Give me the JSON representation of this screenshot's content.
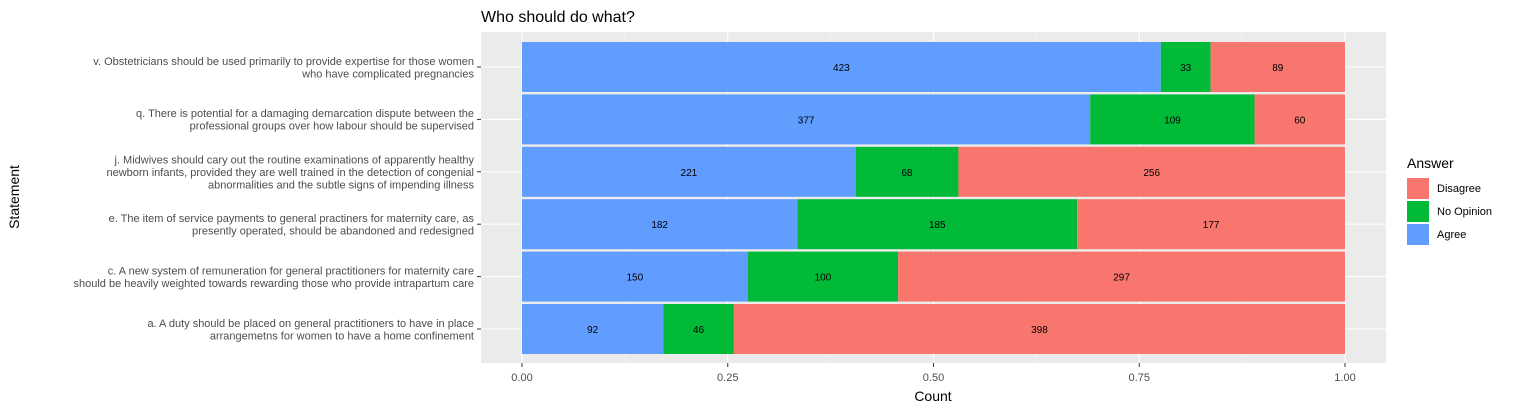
{
  "chart_data": {
    "type": "bar",
    "orientation": "horizontal",
    "stacked": "percent",
    "title": "Who should do what?",
    "xlabel": "Count",
    "ylabel": "Statement",
    "xlim": [
      0,
      1
    ],
    "xticks": [
      "0.00",
      "0.25",
      "0.50",
      "0.75",
      "1.00"
    ],
    "grid": true,
    "legend": {
      "title": "Answer",
      "position": "right",
      "entries": [
        {
          "name": "Disagree",
          "color": "#F8766D"
        },
        {
          "name": "No Opinion",
          "color": "#00BA38"
        },
        {
          "name": "Agree",
          "color": "#619CFF"
        }
      ]
    },
    "categories": [
      [
        "v. Obstetricians should be used primarily to provide expertise for those women",
        "who have complicated pregnancies"
      ],
      [
        "q. There is potential for a damaging demarcation dispute between the",
        "professional groups over how labour should be supervised"
      ],
      [
        "j. Midwives should cary out the routine examinations of apparently healthy",
        "newborn infants, provided they are well trained in the detection of congenial",
        "abnormalities and the subtle signs of impending illness"
      ],
      [
        "e. The item of service payments to general practiners for maternity care, as",
        "presently operated, should be abandoned and redesigned"
      ],
      [
        "c. A new system of remuneration for general practitioners for maternity care",
        "should be heavily weighted towards rewarding those who provide intrapartum care"
      ],
      [
        "a. A duty should be placed on general practitioners to have in place",
        "arrangemetns for women to have a home confinement"
      ]
    ],
    "series": [
      {
        "name": "Agree",
        "color": "#619CFF",
        "values": [
          423,
          377,
          221,
          182,
          150,
          92
        ]
      },
      {
        "name": "No Opinion",
        "color": "#00BA38",
        "values": [
          33,
          109,
          68,
          185,
          100,
          46
        ]
      },
      {
        "name": "Disagree",
        "color": "#F8766D",
        "values": [
          89,
          60,
          256,
          177,
          297,
          398
        ]
      }
    ]
  }
}
